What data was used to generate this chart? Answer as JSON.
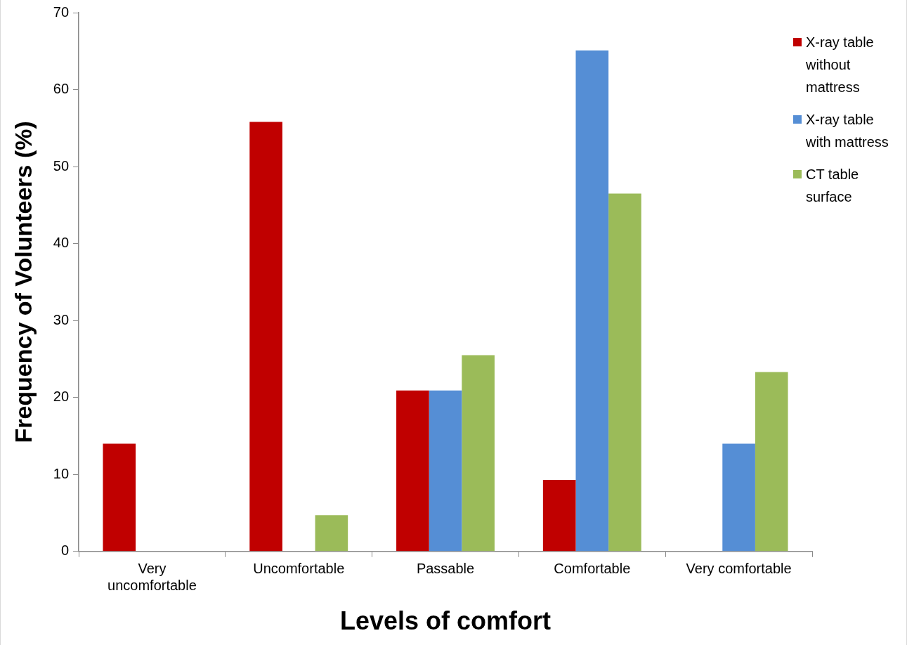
{
  "chart_data": {
    "type": "bar",
    "xlabel": "Levels of comfort",
    "ylabel": "Frequency of Volunteers (%)",
    "categories": [
      "Very uncomfortable",
      "Uncomfortable",
      "Passable",
      "Comfortable",
      "Very comfortable"
    ],
    "series": [
      {
        "name": "X-ray table without mattress",
        "color": "#c00000",
        "values": [
          14,
          55.8,
          20.9,
          9.3,
          0
        ]
      },
      {
        "name": "X-ray table with mattress",
        "color": "#558ed5",
        "values": [
          0,
          0,
          20.9,
          65.1,
          14
        ]
      },
      {
        "name": "CT table surface",
        "color": "#9bbb59",
        "values": [
          0,
          4.7,
          25.5,
          46.5,
          23.3
        ]
      }
    ],
    "ylim": [
      0,
      70
    ],
    "yticks": [
      0,
      10,
      20,
      30,
      40,
      50,
      60,
      70
    ],
    "grid": false,
    "legend": "top right"
  }
}
